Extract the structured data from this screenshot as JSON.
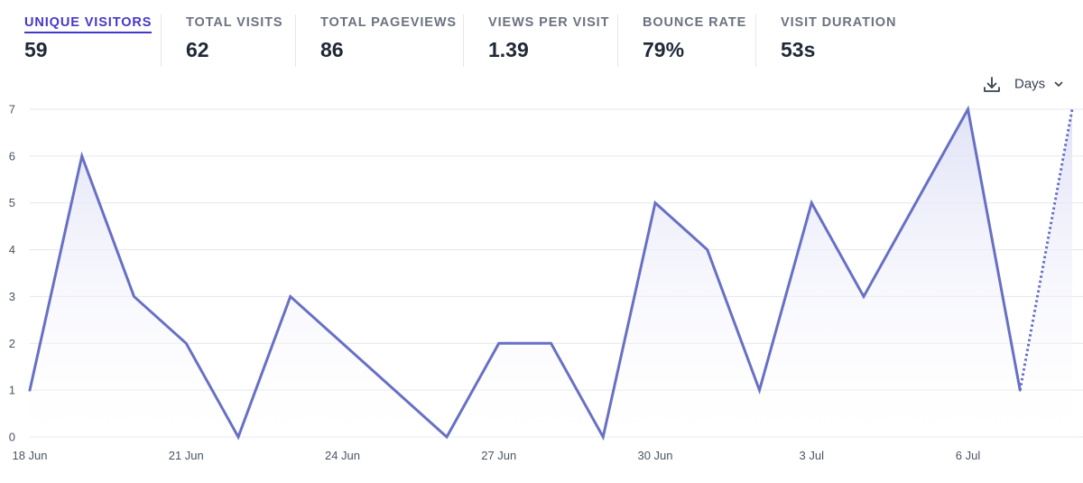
{
  "stats": [
    {
      "label": "UNIQUE VISITORS",
      "value": "59",
      "active": true
    },
    {
      "label": "TOTAL VISITS",
      "value": "62",
      "active": false
    },
    {
      "label": "TOTAL PAGEVIEWS",
      "value": "86",
      "active": false
    },
    {
      "label": "VIEWS PER VISIT",
      "value": "1.39",
      "active": false
    },
    {
      "label": "BOUNCE RATE",
      "value": "79%",
      "active": false
    },
    {
      "label": "VISIT DURATION",
      "value": "53s",
      "active": false
    }
  ],
  "controls": {
    "download_icon": "download-icon",
    "interval_label": "Days",
    "interval_icon": "chevron-down-icon"
  },
  "colors": {
    "accent": "#4338ca",
    "line": "#6770c4",
    "area_top": "#e0e2f6",
    "grid": "#e5e7eb"
  },
  "chart_data": {
    "type": "line",
    "title": "",
    "xlabel": "",
    "ylabel": "",
    "ylim": [
      0,
      7
    ],
    "yticks": [
      0,
      1,
      2,
      3,
      4,
      5,
      6,
      7
    ],
    "x": [
      "18 Jun",
      "19 Jun",
      "20 Jun",
      "21 Jun",
      "22 Jun",
      "23 Jun",
      "24 Jun",
      "25 Jun",
      "26 Jun",
      "27 Jun",
      "28 Jun",
      "29 Jun",
      "30 Jun",
      "1 Jul",
      "2 Jul",
      "3 Jul",
      "4 Jul",
      "5 Jul",
      "6 Jul",
      "7 Jul",
      "8 Jul"
    ],
    "xtick_labels": [
      "18 Jun",
      "21 Jun",
      "24 Jun",
      "27 Jun",
      "30 Jun",
      "3 Jul",
      "6 Jul"
    ],
    "series": [
      {
        "name": "Unique visitors",
        "values": [
          1,
          6,
          3,
          2,
          0,
          3,
          2,
          1,
          0,
          2,
          2,
          0,
          5,
          4,
          1,
          5,
          3,
          5,
          7,
          1,
          7
        ],
        "incomplete_last": true
      }
    ]
  }
}
